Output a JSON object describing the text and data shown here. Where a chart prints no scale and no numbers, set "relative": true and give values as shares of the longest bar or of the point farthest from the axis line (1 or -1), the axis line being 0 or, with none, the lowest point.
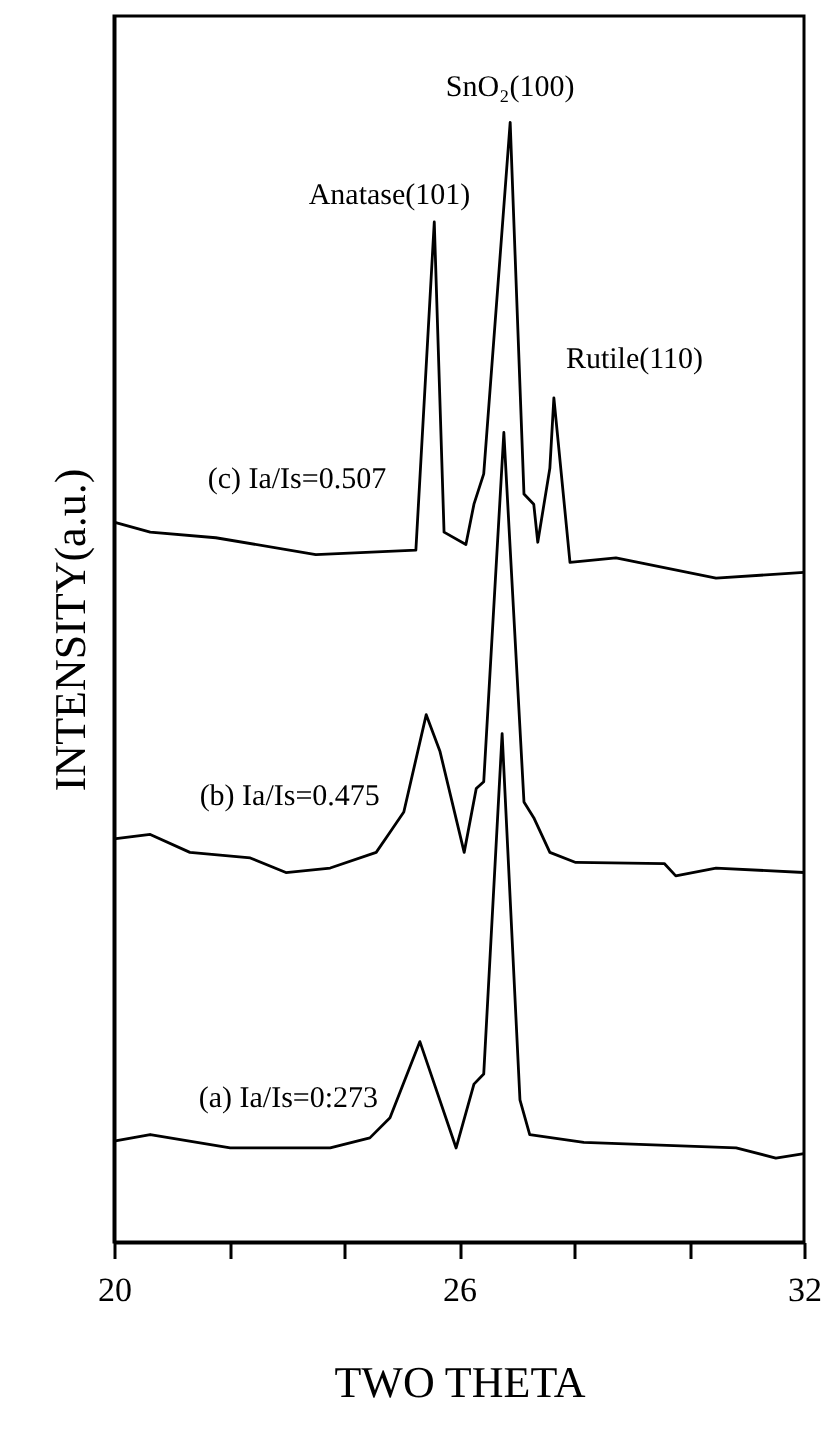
{
  "chart_data": {
    "type": "line",
    "relative": true,
    "xlabel": "TWO THETA",
    "ylabel": "INTENSITY(a.u.)",
    "xlim": [
      20,
      32
    ],
    "xticks": [
      20,
      {
        "value": 22,
        "label": null
      },
      {
        "value": 24,
        "label": null
      },
      26,
      {
        "value": 28,
        "label": null
      },
      {
        "value": 30,
        "label": null
      },
      32
    ],
    "tick_labels": "x",
    "grid": false,
    "legend": false,
    "marker": "none",
    "line_style": "solid",
    "series": [
      {
        "name": "(a) Ia/Is=0:273",
        "color": "#000000",
        "x": [
          20,
          20.63,
          22.02,
          23.76,
          24.45,
          24.8,
          25.32,
          25.95,
          26.26,
          26.43,
          26.75,
          27.06,
          27.23,
          28.17,
          30.82,
          31.51,
          32
        ],
        "values": [
          0.09,
          0.096,
          0.084,
          0.084,
          0.093,
          0.111,
          0.179,
          0.084,
          0.141,
          0.15,
          0.454,
          0.127,
          0.096,
          0.089,
          0.084,
          0.075,
          0.079
        ]
      },
      {
        "name": "(b) Ia/Is=0.475",
        "color": "#000000",
        "x": [
          20,
          20.63,
          21.32,
          22.37,
          22.99,
          23.76,
          24.56,
          24.8,
          25.04,
          25.43,
          25.67,
          26.09,
          26.3,
          26.43,
          26.78,
          27.13,
          27.3,
          27.58,
          28.03,
          29.57,
          29.77,
          30.47,
          32
        ],
        "values": [
          0.36,
          0.364,
          0.348,
          0.343,
          0.33,
          0.334,
          0.348,
          0.366,
          0.384,
          0.471,
          0.438,
          0.348,
          0.405,
          0.411,
          0.723,
          0.393,
          0.379,
          0.348,
          0.339,
          0.338,
          0.327,
          0.334,
          0.33
        ]
      },
      {
        "name": "(c) Ia/Is=0.507",
        "color": "#000000",
        "x": [
          20,
          20.63,
          21.77,
          23.51,
          25.25,
          25.57,
          25.74,
          26.12,
          26.26,
          26.43,
          26.89,
          27.13,
          27.3,
          27.37,
          27.58,
          27.65,
          27.93,
          28.73,
          30.47,
          32
        ],
        "values": [
          0.643,
          0.634,
          0.629,
          0.614,
          0.618,
          0.911,
          0.634,
          0.623,
          0.659,
          0.686,
          1,
          0.668,
          0.659,
          0.625,
          0.691,
          0.754,
          0.607,
          0.611,
          0.593,
          0.598
        ]
      }
    ],
    "annotations": [
      {
        "text": "Anatase(101)",
        "x": 25.57,
        "y": 0.911
      },
      {
        "text": "SnO₂(100)",
        "x": 26.89,
        "y": 1
      },
      {
        "text": "Rutile(110)",
        "x": 27.65,
        "y": 0.754
      }
    ]
  }
}
